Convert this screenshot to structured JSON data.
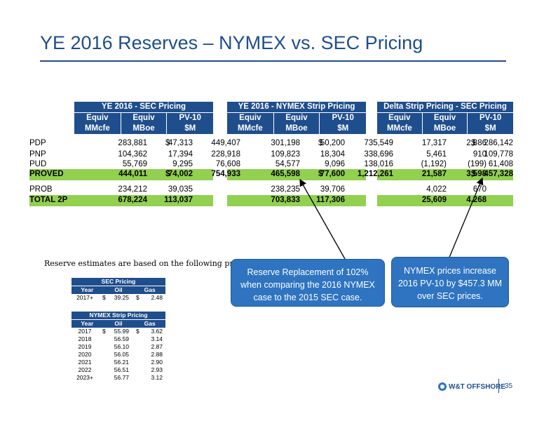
{
  "title": "YE 2016 Reserves – NYMEX vs. SEC Pricing",
  "blocks": [
    {
      "title": "YE 2016 - SEC Pricing",
      "cols": [
        [
          "Equiv",
          "MMcfe"
        ],
        [
          "Equiv",
          "MBoe"
        ],
        [
          "PV-10",
          "$M"
        ]
      ]
    },
    {
      "title": "YE 2016 - NYMEX Strip Pricing",
      "cols": [
        [
          "Equiv",
          "MMcfe"
        ],
        [
          "Equiv",
          "MBoe"
        ],
        [
          "PV-10",
          "$M"
        ]
      ]
    },
    {
      "title": "Delta Strip Pricing - SEC Pricing",
      "cols": [
        [
          "Equiv",
          "MMcfe"
        ],
        [
          "Equiv",
          "MBoe"
        ],
        [
          "PV-10",
          "$M"
        ]
      ]
    }
  ],
  "rows": [
    {
      "label": "PDP",
      "green": false,
      "vals": [
        "283,881",
        "47,313",
        "449,407",
        "301,198",
        "50,200",
        "735,549",
        "17,317",
        "2,886",
        "286,142"
      ],
      "dollars": [
        "$",
        "$",
        "$"
      ]
    },
    {
      "label": "PNP",
      "green": false,
      "vals": [
        "104,362",
        "17,394",
        "228,918",
        "109,823",
        "18,304",
        "338,696",
        "5,461",
        "910",
        "109,778"
      ],
      "dollars": [
        "",
        "",
        ""
      ]
    },
    {
      "label": "PUD",
      "green": false,
      "vals": [
        "55,769",
        "9,295",
        "76,608",
        "54,577",
        "9,096",
        "138,016",
        "(1,192)",
        "(199)",
        "61,408"
      ],
      "dollars": [
        "",
        "",
        ""
      ]
    },
    {
      "label": "PROVED",
      "green": true,
      "vals": [
        "444,011",
        "74,002",
        "754,933",
        "465,598",
        "77,600",
        "1,212,261",
        "21,587",
        "3,598",
        "457,328"
      ],
      "dollars": [
        "$",
        "$",
        "$"
      ]
    },
    {
      "label": "PROB",
      "green": false,
      "vals": [
        "234,212",
        "39,035",
        "",
        "238,235",
        "39,706",
        "",
        "4,022",
        "670",
        ""
      ],
      "dollars": [
        "",
        "",
        ""
      ]
    },
    {
      "label": "TOTAL 2P",
      "green": true,
      "vals": [
        "678,224",
        "113,037",
        "",
        "703,833",
        "117,306",
        "",
        "25,609",
        "4,268",
        ""
      ],
      "dollars": [
        "",
        "",
        ""
      ]
    }
  ],
  "note": "Reserve estimates are based on the following pricing:",
  "callouts": {
    "left": "Reserve Replacement of 102% when comparing the 2016 NYMEX case to the 2015 SEC case.",
    "right": "NYMEX prices increase 2016 PV-10 by $457.3 MM over SEC prices."
  },
  "sec_pricing": {
    "title": "SEC Pricing",
    "cols": [
      "Year",
      "Oil",
      "Gas"
    ],
    "rows": [
      {
        "year": "2017+",
        "oil": "39.25",
        "gas": "2.48",
        "d_oil": "$",
        "d_gas": "$"
      }
    ]
  },
  "nymex_pricing": {
    "title": "NYMEX Strip Pricing",
    "cols": [
      "Year",
      "Oil",
      "Gas"
    ],
    "rows": [
      {
        "year": "2017",
        "oil": "55.99",
        "gas": "3.62",
        "d_oil": "$",
        "d_gas": "$"
      },
      {
        "year": "2018",
        "oil": "56.59",
        "gas": "3.14",
        "d_oil": "",
        "d_gas": ""
      },
      {
        "year": "2019",
        "oil": "56.10",
        "gas": "2.87",
        "d_oil": "",
        "d_gas": ""
      },
      {
        "year": "2020",
        "oil": "56.05",
        "gas": "2.88",
        "d_oil": "",
        "d_gas": ""
      },
      {
        "year": "2021",
        "oil": "56.21",
        "gas": "2.90",
        "d_oil": "",
        "d_gas": ""
      },
      {
        "year": "2022",
        "oil": "56.51",
        "gas": "2.93",
        "d_oil": "",
        "d_gas": ""
      },
      {
        "year": "2023+",
        "oil": "56.77",
        "gas": "3.12",
        "d_oil": "",
        "d_gas": ""
      }
    ]
  },
  "logo_text": "W&T OFFSHORE",
  "page_number": "35",
  "colors": {
    "header_blue": "#1f4e8c",
    "highlight_green": "#92d050",
    "callout_blue": "#2f74c0"
  }
}
